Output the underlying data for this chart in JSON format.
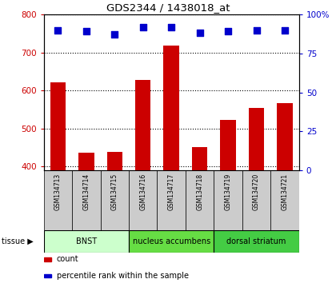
{
  "title": "GDS2344 / 1438018_at",
  "samples": [
    "GSM134713",
    "GSM134714",
    "GSM134715",
    "GSM134716",
    "GSM134717",
    "GSM134718",
    "GSM134719",
    "GSM134720",
    "GSM134721"
  ],
  "counts": [
    622,
    437,
    438,
    628,
    718,
    450,
    522,
    555,
    566
  ],
  "percentile_ranks": [
    90,
    89,
    87,
    92,
    92,
    88,
    89,
    90,
    90
  ],
  "ylim_left": [
    390,
    800
  ],
  "ylim_right": [
    0,
    100
  ],
  "yticks_left": [
    400,
    500,
    600,
    700,
    800
  ],
  "yticks_right": [
    0,
    25,
    50,
    75,
    100
  ],
  "bar_color": "#cc0000",
  "dot_color": "#0000cc",
  "bar_bottom": 390,
  "tissue_groups": [
    {
      "label": "BNST",
      "start": 0,
      "end": 3,
      "color": "#ccffcc"
    },
    {
      "label": "nucleus accumbens",
      "start": 3,
      "end": 6,
      "color": "#66dd44"
    },
    {
      "label": "dorsal striatum",
      "start": 6,
      "end": 9,
      "color": "#44cc44"
    }
  ],
  "tissue_label": "tissue",
  "legend_count_label": "count",
  "legend_pct_label": "percentile rank within the sample",
  "grid_color": "#000000",
  "plot_bg_color": "#ffffff",
  "tick_label_color_left": "#cc0000",
  "tick_label_color_right": "#0000cc",
  "sample_bg_color": "#cccccc",
  "fig_width": 4.2,
  "fig_height": 3.54,
  "fig_dpi": 100
}
